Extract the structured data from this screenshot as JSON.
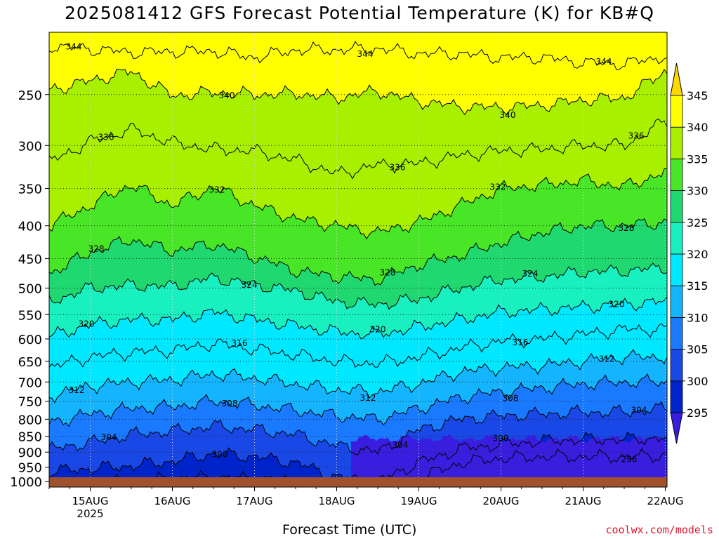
{
  "title": "2025081412 GFS Forecast Potential Temperature (K) for KB#Q",
  "credit": "coolwx.com/models",
  "chart_data": {
    "type": "heatmap",
    "title": "2025081412 GFS Forecast Potential Temperature (K) for KB#Q",
    "xlabel": "Forecast Time (UTC)",
    "ylabel": "",
    "xlim": [
      "2025-08-14T12Z",
      "2025-08-22T00Z"
    ],
    "x_ticks": [
      {
        "date": "2025-08-15",
        "label": "15AUG",
        "sublabel": "2025"
      },
      {
        "date": "2025-08-16",
        "label": "16AUG",
        "sublabel": ""
      },
      {
        "date": "2025-08-17",
        "label": "17AUG",
        "sublabel": ""
      },
      {
        "date": "2025-08-18",
        "label": "18AUG",
        "sublabel": ""
      },
      {
        "date": "2025-08-19",
        "label": "19AUG",
        "sublabel": ""
      },
      {
        "date": "2025-08-20",
        "label": "20AUG",
        "sublabel": ""
      },
      {
        "date": "2025-08-21",
        "label": "21AUG",
        "sublabel": ""
      },
      {
        "date": "2025-08-22",
        "label": "22AUG",
        "sublabel": ""
      }
    ],
    "y_ticks": [
      250,
      300,
      350,
      400,
      450,
      500,
      550,
      600,
      650,
      700,
      750,
      800,
      850,
      900,
      950,
      1000
    ],
    "ylim_hPa": [
      1020,
      200
    ],
    "y_scale": "log",
    "grid": true,
    "colorbar": {
      "levels": [
        295,
        300,
        305,
        310,
        315,
        320,
        325,
        330,
        335,
        340,
        345
      ],
      "colors": [
        "#3a1ee0",
        "#0024cc",
        "#1a48e6",
        "#1a7aff",
        "#14b4ff",
        "#00e8ff",
        "#18f0c0",
        "#20d870",
        "#48e626",
        "#a8f000",
        "#ffff00",
        "#ffd800"
      ],
      "extend": "both"
    },
    "contour_interval": 4,
    "contour_labels": [
      "296",
      "300",
      "304",
      "308",
      "312",
      "316",
      "320",
      "324",
      "328",
      "332",
      "336",
      "340",
      "344"
    ],
    "contours": [
      {
        "value": 344,
        "p": [
          [
            0,
            210
          ],
          [
            1,
            215
          ],
          [
            2,
            214
          ],
          [
            2.5,
            219
          ],
          [
            3,
            213
          ],
          [
            3.5,
            213
          ],
          [
            4,
            212
          ],
          [
            4.5,
            216
          ],
          [
            5,
            216
          ],
          [
            5.5,
            219
          ],
          [
            6,
            219
          ],
          [
            6.5,
            223
          ],
          [
            7,
            224
          ],
          [
            7.5,
            218
          ]
        ]
      },
      {
        "value": 340,
        "p": [
          [
            0,
            246
          ],
          [
            0.5,
            238
          ],
          [
            1,
            230
          ],
          [
            1.5,
            251
          ],
          [
            2,
            248
          ],
          [
            2.5,
            250
          ],
          [
            3,
            249
          ],
          [
            3.5,
            253
          ],
          [
            4,
            247
          ],
          [
            4.5,
            256
          ],
          [
            5,
            261
          ],
          [
            5.5,
            262
          ],
          [
            6,
            260
          ],
          [
            6.5,
            255
          ],
          [
            7,
            253
          ],
          [
            7.5,
            230
          ]
        ]
      },
      {
        "value": 336,
        "p": [
          [
            0,
            318
          ],
          [
            0.5,
            296
          ],
          [
            1,
            283
          ],
          [
            1.5,
            297
          ],
          [
            2,
            304
          ],
          [
            2.5,
            306
          ],
          [
            3,
            316
          ],
          [
            3.5,
            332
          ],
          [
            4,
            322
          ],
          [
            4.5,
            320
          ],
          [
            5,
            311
          ],
          [
            5.5,
            306
          ],
          [
            6,
            304
          ],
          [
            6.5,
            300
          ],
          [
            7,
            300
          ],
          [
            7.5,
            275
          ]
        ]
      },
      {
        "value": 332,
        "p": [
          [
            0,
            400
          ],
          [
            0.5,
            372
          ],
          [
            1,
            345
          ],
          [
            1.5,
            372
          ],
          [
            2,
            348
          ],
          [
            2.5,
            372
          ],
          [
            3,
            390
          ],
          [
            3.5,
            400
          ],
          [
            4,
            410
          ],
          [
            4.5,
            395
          ],
          [
            5,
            372
          ],
          [
            5.5,
            350
          ],
          [
            6,
            346
          ],
          [
            6.5,
            340
          ],
          [
            7,
            348
          ],
          [
            7.5,
            330
          ]
        ]
      },
      {
        "value": 328,
        "p": [
          [
            0,
            475
          ],
          [
            0.5,
            440
          ],
          [
            1,
            420
          ],
          [
            1.5,
            438
          ],
          [
            2,
            427
          ],
          [
            2.5,
            447
          ],
          [
            3,
            470
          ],
          [
            3.5,
            480
          ],
          [
            4,
            485
          ],
          [
            4.5,
            460
          ],
          [
            5,
            445
          ],
          [
            5.5,
            425
          ],
          [
            6,
            410
          ],
          [
            6.5,
            400
          ],
          [
            7,
            400
          ],
          [
            7.5,
            395
          ]
        ]
      },
      {
        "value": 324,
        "p": [
          [
            0,
            525
          ],
          [
            0.5,
            500
          ],
          [
            1,
            495
          ],
          [
            1.5,
            497
          ],
          [
            2,
            482
          ],
          [
            2.5,
            494
          ],
          [
            3,
            505
          ],
          [
            3.5,
            525
          ],
          [
            4,
            530
          ],
          [
            4.5,
            520
          ],
          [
            5,
            500
          ],
          [
            5.5,
            485
          ],
          [
            6,
            480
          ],
          [
            6.5,
            472
          ],
          [
            7,
            470
          ],
          [
            7.5,
            465
          ]
        ]
      },
      {
        "value": 320,
        "p": [
          [
            0,
            595
          ],
          [
            0.5,
            570
          ],
          [
            1,
            560
          ],
          [
            1.5,
            560
          ],
          [
            2,
            545
          ],
          [
            2.5,
            560
          ],
          [
            3,
            572
          ],
          [
            3.5,
            585
          ],
          [
            4,
            590
          ],
          [
            4.5,
            575
          ],
          [
            5,
            560
          ],
          [
            5.5,
            545
          ],
          [
            6,
            540
          ],
          [
            6.5,
            535
          ],
          [
            7,
            530
          ],
          [
            7.5,
            525
          ]
        ]
      },
      {
        "value": 316,
        "p": [
          [
            0,
            665
          ],
          [
            0.5,
            640
          ],
          [
            1,
            630
          ],
          [
            1.5,
            625
          ],
          [
            2,
            610
          ],
          [
            2.5,
            622
          ],
          [
            3,
            635
          ],
          [
            3.5,
            650
          ],
          [
            4,
            655
          ],
          [
            4.5,
            640
          ],
          [
            5,
            620
          ],
          [
            5.5,
            605
          ],
          [
            6,
            600
          ],
          [
            6.5,
            590
          ],
          [
            7,
            580
          ],
          [
            7.5,
            580
          ]
        ]
      },
      {
        "value": 312,
        "p": [
          [
            0,
            735
          ],
          [
            0.5,
            710
          ],
          [
            1,
            700
          ],
          [
            1.5,
            695
          ],
          [
            2,
            680
          ],
          [
            2.5,
            690
          ],
          [
            3,
            705
          ],
          [
            3.5,
            720
          ],
          [
            4,
            725
          ],
          [
            4.5,
            705
          ],
          [
            5,
            675
          ],
          [
            5.5,
            665
          ],
          [
            6,
            660
          ],
          [
            6.5,
            650
          ],
          [
            7,
            640
          ],
          [
            7.5,
            640
          ]
        ]
      },
      {
        "value": 308,
        "p": [
          [
            0,
            810
          ],
          [
            0.5,
            785
          ],
          [
            1,
            770
          ],
          [
            1.5,
            765
          ],
          [
            2,
            750
          ],
          [
            2.5,
            760
          ],
          [
            3,
            775
          ],
          [
            3.5,
            790
          ],
          [
            4,
            800
          ],
          [
            4.5,
            770
          ],
          [
            5,
            740
          ],
          [
            5.5,
            725
          ],
          [
            6,
            715
          ],
          [
            6.5,
            705
          ],
          [
            7,
            700
          ],
          [
            7.5,
            700
          ]
        ]
      },
      {
        "value": 304,
        "p": [
          [
            0,
            890
          ],
          [
            0.5,
            870
          ],
          [
            1,
            845
          ],
          [
            1.5,
            835
          ],
          [
            2,
            820
          ],
          [
            2.5,
            830
          ],
          [
            3,
            845
          ],
          [
            3.5,
            880
          ],
          [
            4,
            900
          ],
          [
            4.5,
            830
          ],
          [
            5,
            800
          ],
          [
            5.5,
            790
          ],
          [
            6,
            785
          ],
          [
            6.5,
            780
          ],
          [
            7,
            780
          ],
          [
            7.5,
            770
          ]
        ]
      },
      {
        "value": 300,
        "p": [
          [
            0,
            965
          ],
          [
            0.5,
            955
          ],
          [
            1,
            945
          ],
          [
            1.5,
            930
          ],
          [
            2,
            905
          ],
          [
            2.5,
            915
          ],
          [
            3,
            935
          ],
          [
            3.5,
            985
          ],
          [
            4,
            1000
          ],
          [
            4.5,
            935
          ],
          [
            5,
            890
          ],
          [
            5.5,
            875
          ],
          [
            6,
            865
          ],
          [
            6.5,
            860
          ],
          [
            7,
            860
          ],
          [
            7.5,
            855
          ]
        ]
      },
      {
        "value": 296,
        "p": [
          [
            0,
            1020
          ],
          [
            0.5,
            1005
          ],
          [
            1,
            1000
          ],
          [
            1.5,
            990
          ],
          [
            2,
            985
          ],
          [
            2.5,
            990
          ],
          [
            3,
            1000
          ],
          [
            3.5,
            1020
          ],
          [
            4,
            1020
          ],
          [
            4.5,
            990
          ],
          [
            5,
            935
          ],
          [
            5.5,
            920
          ],
          [
            6,
            915
          ],
          [
            6.5,
            915
          ],
          [
            7,
            915
          ],
          [
            7.5,
            910
          ]
        ]
      }
    ],
    "series": []
  }
}
